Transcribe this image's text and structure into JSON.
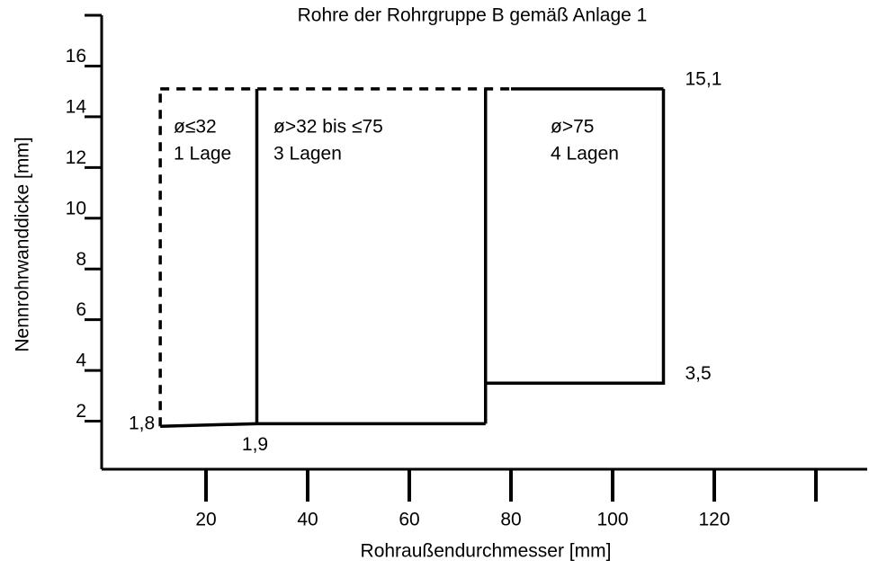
{
  "chart_data": {
    "type": "line",
    "title": "Rohre der Rohrgruppe B gemäß Anlage 1",
    "xlabel": "Rohraußendurchmesser [mm]",
    "ylabel": "Nennrohrwanddicke [mm]",
    "xlim": [
      0,
      150
    ],
    "ylim": [
      0,
      18
    ],
    "xticks": [
      20,
      40,
      60,
      80,
      100,
      120,
      {
        "value": 140,
        "label": null
      }
    ],
    "yticks": [
      2,
      4,
      6,
      8,
      10,
      12,
      14,
      16,
      {
        "value": 18,
        "label": null
      }
    ],
    "color": "#000000",
    "series": [
      {
        "x": [
          11,
          11
        ],
        "values": [
          1.8,
          15.1
        ],
        "style": "dashed"
      },
      {
        "x": [
          11,
          80
        ],
        "values": [
          15.1,
          15.1
        ],
        "style": "dashed"
      },
      {
        "x": [
          80,
          110
        ],
        "values": [
          15.1,
          15.1
        ],
        "style": "solid"
      },
      {
        "x": [
          11,
          30,
          75
        ],
        "values": [
          1.8,
          1.9,
          1.9
        ],
        "style": "solid",
        "value_labels": [
          "1,8",
          "1,9",
          null
        ]
      },
      {
        "x": [
          30,
          30
        ],
        "values": [
          1.9,
          15.1
        ],
        "style": "solid"
      },
      {
        "x": [
          75,
          75
        ],
        "values": [
          1.9,
          15.1
        ],
        "style": "solid"
      },
      {
        "x": [
          75,
          110,
          110
        ],
        "values": [
          3.5,
          3.5,
          15.1
        ],
        "style": "solid",
        "value_labels": [
          null,
          "3,5",
          "15,1"
        ]
      }
    ],
    "annotations": [
      [
        "ø≤32",
        "1 Lage"
      ],
      [
        "ø>32 bis ≤75",
        "3 Lagen"
      ],
      [
        "ø>75",
        "4 Lagen"
      ]
    ]
  }
}
